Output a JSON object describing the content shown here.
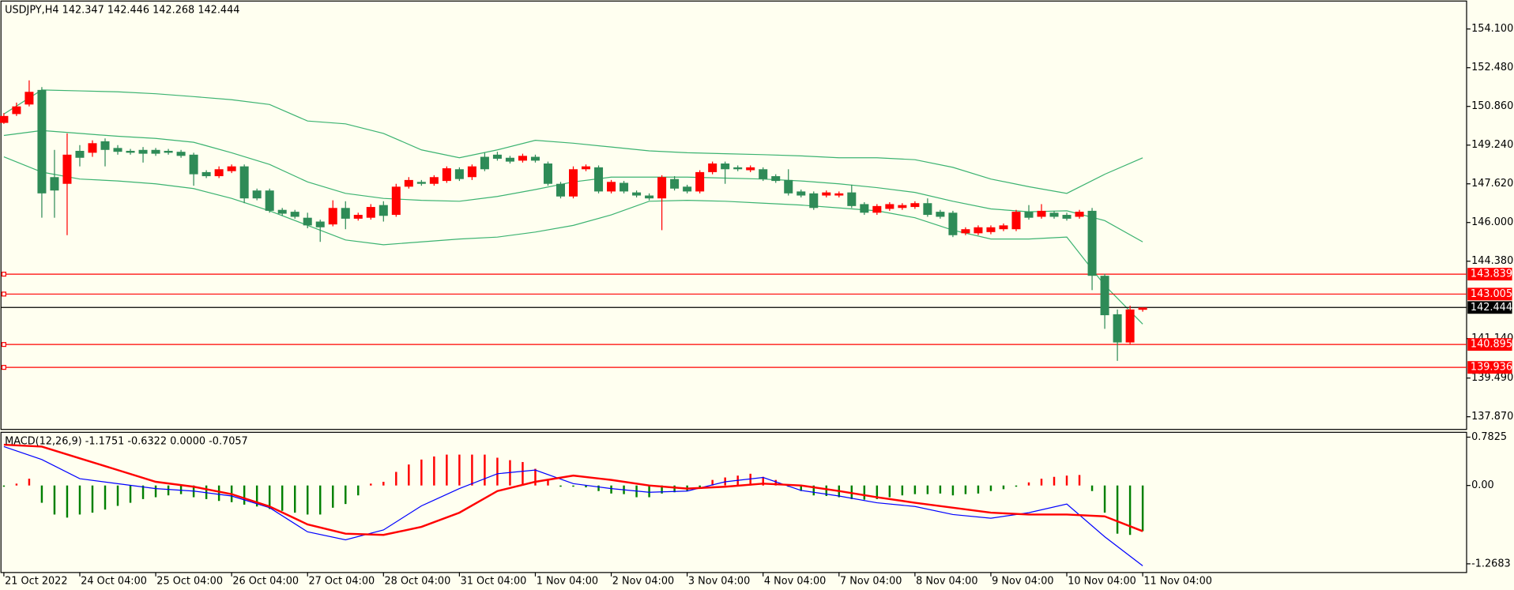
{
  "chart_data": {
    "type": "candlestick",
    "symbol": "USDJPY,H4",
    "categories": [
      "21 Oct 2022",
      null,
      null,
      null,
      null,
      null,
      "24 Oct 04:00",
      null,
      null,
      null,
      null,
      null,
      "25 Oct 04:00",
      null,
      null,
      null,
      null,
      null,
      "26 Oct 04:00",
      null,
      null,
      null,
      null,
      null,
      "27 Oct 04:00",
      null,
      null,
      null,
      null,
      null,
      "28 Oct 04:00",
      null,
      null,
      null,
      null,
      null,
      "31 Oct 04:00",
      null,
      null,
      null,
      null,
      null,
      "1 Nov 04:00",
      null,
      null,
      null,
      null,
      null,
      "2 Nov 04:00",
      null,
      null,
      null,
      null,
      null,
      "3 Nov 04:00",
      null,
      null,
      null,
      null,
      null,
      "4 Nov 04:00",
      null,
      null,
      null,
      null,
      null,
      "7 Nov 04:00",
      null,
      null,
      null,
      null,
      null,
      "8 Nov 04:00",
      null,
      null,
      null,
      null,
      null,
      "9 Nov 04:00",
      null,
      null,
      null,
      null,
      null,
      "10 Nov 04:00",
      null,
      null,
      null,
      null,
      null,
      "11 Nov 04:00"
    ],
    "open": [
      150.17,
      150.54,
      150.94,
      151.55,
      147.9,
      147.62,
      149.0,
      148.92,
      149.4,
      149.12,
      149.0,
      149.04,
      149.04,
      149.0,
      148.96,
      148.84,
      148.11,
      147.94,
      148.15,
      148.35,
      147.34,
      147.34,
      146.53,
      146.45,
      146.2,
      146.04,
      145.92,
      146.61,
      146.16,
      146.2,
      146.73,
      146.32,
      147.5,
      147.7,
      147.62,
      147.74,
      148.23,
      147.9,
      148.75,
      148.84,
      148.71,
      148.59,
      148.75,
      148.47,
      147.62,
      147.09,
      148.23,
      148.31,
      147.3,
      147.66,
      147.26,
      147.13,
      147.01,
      147.82,
      147.5,
      147.3,
      148.11,
      148.47,
      148.31,
      148.19,
      148.23,
      147.94,
      147.78,
      147.3,
      147.22,
      147.13,
      147.13,
      147.26,
      146.77,
      146.41,
      146.57,
      146.61,
      146.65,
      146.81,
      146.45,
      146.41,
      145.55,
      145.55,
      145.6,
      145.72,
      145.72,
      146.45,
      146.24,
      146.41,
      146.32,
      146.24,
      146.49,
      143.77,
      142.16,
      140.98,
      142.347
    ],
    "high": [
      150.58,
      151.02,
      151.95,
      151.67,
      149.04,
      149.73,
      149.24,
      149.44,
      149.52,
      149.24,
      149.08,
      149.16,
      149.12,
      149.08,
      149.04,
      148.92,
      148.19,
      148.35,
      148.43,
      148.43,
      147.42,
      147.42,
      146.61,
      146.53,
      146.41,
      146.12,
      146.93,
      146.89,
      146.41,
      146.77,
      146.89,
      147.62,
      147.9,
      147.78,
      147.98,
      148.35,
      148.31,
      148.43,
      148.92,
      148.96,
      148.79,
      148.88,
      148.84,
      148.55,
      147.7,
      148.35,
      148.43,
      148.39,
      147.78,
      147.74,
      147.34,
      147.22,
      147.98,
      147.94,
      147.58,
      148.19,
      148.55,
      148.55,
      148.39,
      148.39,
      148.31,
      148.02,
      148.23,
      147.38,
      147.3,
      147.34,
      147.3,
      147.58,
      146.85,
      146.77,
      146.85,
      146.81,
      146.89,
      147.01,
      146.53,
      146.49,
      145.8,
      145.88,
      145.88,
      145.96,
      146.53,
      146.73,
      146.77,
      146.49,
      146.41,
      146.53,
      146.61,
      143.85,
      142.36,
      142.52,
      142.446
    ],
    "low": [
      150.13,
      150.46,
      150.86,
      146.2,
      146.2,
      145.47,
      148.35,
      148.75,
      148.35,
      148.84,
      148.84,
      148.51,
      148.79,
      148.84,
      148.71,
      147.54,
      147.86,
      147.86,
      148.07,
      146.81,
      146.93,
      146.41,
      146.28,
      146.16,
      145.76,
      145.19,
      145.84,
      145.72,
      146.08,
      146.12,
      146.04,
      146.24,
      147.42,
      147.54,
      147.54,
      147.66,
      147.74,
      147.78,
      148.15,
      148.59,
      148.47,
      148.51,
      148.51,
      147.54,
      147.01,
      147.01,
      148.15,
      147.22,
      147.22,
      147.22,
      147.05,
      146.93,
      145.68,
      147.34,
      147.22,
      147.22,
      148.02,
      147.62,
      148.15,
      148.11,
      147.74,
      147.66,
      147.13,
      147.05,
      146.53,
      147.05,
      147.05,
      146.61,
      146.32,
      146.32,
      146.49,
      146.53,
      146.57,
      146.24,
      146.16,
      145.39,
      145.47,
      145.47,
      145.51,
      145.64,
      145.64,
      146.12,
      146.16,
      146.16,
      146.08,
      146.16,
      143.17,
      141.55,
      140.21,
      140.9,
      142.268
    ],
    "close": [
      150.46,
      150.86,
      151.47,
      147.22,
      147.34,
      148.84,
      148.71,
      149.32,
      149.04,
      148.96,
      148.92,
      148.88,
      148.88,
      148.92,
      148.79,
      148.02,
      147.94,
      148.23,
      148.35,
      147.01,
      147.01,
      146.49,
      146.37,
      146.24,
      145.88,
      145.8,
      146.61,
      146.16,
      146.32,
      146.65,
      146.28,
      147.5,
      147.78,
      147.62,
      147.9,
      148.27,
      147.82,
      148.35,
      148.23,
      148.67,
      148.55,
      148.79,
      148.59,
      147.62,
      147.09,
      148.23,
      148.35,
      147.3,
      147.7,
      147.3,
      147.13,
      147.01,
      147.9,
      147.42,
      147.3,
      148.11,
      148.47,
      148.23,
      148.23,
      148.31,
      147.82,
      147.74,
      147.22,
      147.13,
      146.61,
      147.26,
      147.22,
      146.69,
      146.41,
      146.69,
      146.77,
      146.73,
      146.81,
      146.32,
      146.24,
      145.47,
      145.72,
      145.8,
      145.8,
      145.88,
      146.45,
      146.2,
      146.49,
      146.24,
      146.16,
      146.45,
      143.77,
      142.12,
      140.98,
      142.36,
      142.444
    ],
    "up_color": "#ff0000",
    "down_color": "#2e8b57",
    "ylim": [
      137.34,
      155.23
    ],
    "yticks": [
      {
        "value": 154.1,
        "label": "154.100"
      },
      {
        "value": 152.48,
        "label": "152.480"
      },
      {
        "value": 150.86,
        "label": "150.860"
      },
      {
        "value": 149.24,
        "label": "149.240"
      },
      {
        "value": 147.62,
        "label": "147.620"
      },
      {
        "value": 146.0,
        "label": "146.000"
      },
      {
        "value": 144.38,
        "label": "144.380"
      },
      {
        "value": 141.14,
        "label": "141.140"
      },
      {
        "value": 139.49,
        "label": "139.490"
      },
      {
        "value": 137.87,
        "label": "137.870"
      }
    ],
    "bands": {
      "color": "#3cb371",
      "x": [
        0,
        3,
        6,
        9,
        12,
        15,
        18,
        21,
        24,
        27,
        30,
        33,
        36,
        39,
        42,
        45,
        48,
        51,
        54,
        57,
        60,
        63,
        66,
        69,
        72,
        75,
        78,
        81,
        84,
        87,
        90
      ],
      "upper": [
        150.54,
        151.55,
        151.51,
        151.47,
        151.39,
        151.27,
        151.14,
        150.94,
        150.25,
        150.13,
        149.73,
        149.04,
        148.71,
        149.04,
        149.44,
        149.32,
        149.16,
        149.0,
        148.92,
        148.88,
        148.84,
        148.79,
        148.71,
        148.71,
        148.63,
        148.31,
        147.82,
        147.5,
        147.22,
        148.02,
        148.71
      ],
      "middle": [
        149.645,
        149.85,
        149.73,
        149.61,
        149.52,
        149.36,
        148.92,
        148.43,
        147.7,
        147.22,
        147.01,
        146.93,
        146.89,
        147.09,
        147.38,
        147.7,
        147.9,
        147.9,
        147.9,
        147.86,
        147.82,
        147.74,
        147.62,
        147.46,
        147.26,
        146.89,
        146.57,
        146.45,
        146.49,
        146.08,
        145.19
      ],
      "lower": [
        148.75,
        148.11,
        147.82,
        147.74,
        147.62,
        147.42,
        147.01,
        146.49,
        145.88,
        145.27,
        145.07,
        145.19,
        145.31,
        145.39,
        145.6,
        145.88,
        146.32,
        146.89,
        146.93,
        146.89,
        146.81,
        146.73,
        146.61,
        146.49,
        146.2,
        145.68,
        145.31,
        145.31,
        145.39,
        143.37,
        141.75
      ]
    },
    "levels": [
      {
        "value": 143.839,
        "color": "#ff0000"
      },
      {
        "value": 143.005,
        "color": "#ff0000"
      },
      {
        "value": 142.444,
        "color": "#000000"
      },
      {
        "value": 140.895,
        "color": "#ff0000"
      },
      {
        "value": 139.936,
        "color": "#ff0000"
      }
    ],
    "indicator": {
      "title": "MACD(12,26,9)",
      "header_values": [
        -1.1751,
        -0.6322,
        {
          "value": 0,
          "label": "0.0000"
        },
        -0.7057
      ],
      "ylim": [
        -1.409,
        0.861
      ],
      "yticks": [
        0.7825,
        {
          "value": 0,
          "label": "0.00"
        },
        -1.2683
      ],
      "pos_color": "#ff0000",
      "neg_color": "#008000",
      "histogram": [
        -0.02,
        0.03,
        0.11,
        -0.28,
        -0.47,
        -0.52,
        -0.47,
        -0.44,
        -0.39,
        -0.33,
        -0.28,
        -0.22,
        -0.19,
        -0.16,
        -0.14,
        -0.19,
        -0.22,
        -0.25,
        -0.27,
        -0.31,
        -0.34,
        -0.38,
        -0.41,
        -0.44,
        -0.47,
        -0.47,
        -0.36,
        -0.3,
        -0.16,
        0.03,
        0.06,
        0.22,
        0.34,
        0.42,
        0.47,
        0.5,
        0.5,
        0.5,
        0.5,
        0.45,
        0.41,
        0.38,
        0.27,
        0.08,
        -0.02,
        -0.02,
        -0.03,
        -0.09,
        -0.13,
        -0.14,
        -0.19,
        -0.19,
        -0.13,
        -0.11,
        -0.09,
        -0.03,
        0.09,
        0.13,
        0.16,
        0.19,
        0.14,
        0.09,
        -0.02,
        -0.09,
        -0.16,
        -0.17,
        -0.19,
        -0.22,
        -0.23,
        -0.22,
        -0.19,
        -0.16,
        -0.14,
        -0.14,
        -0.13,
        -0.16,
        -0.14,
        -0.13,
        -0.09,
        -0.06,
        -0.02,
        0.05,
        0.11,
        0.14,
        0.16,
        0.17,
        -0.09,
        -0.44,
        -0.78,
        -0.8,
        -0.74
      ],
      "macd": {
        "color": "#0000ff",
        "x": [
          0,
          3,
          6,
          9,
          12,
          15,
          18,
          21,
          24,
          27,
          30,
          33,
          36,
          39,
          42,
          45,
          48,
          51,
          54,
          57,
          60,
          63,
          66,
          69,
          72,
          75,
          78,
          81,
          84,
          87,
          90
        ],
        "values": [
          0.63,
          0.42,
          0.11,
          0.03,
          -0.05,
          -0.09,
          -0.17,
          -0.36,
          -0.75,
          -0.88,
          -0.72,
          -0.33,
          -0.05,
          0.19,
          0.25,
          0.03,
          -0.05,
          -0.11,
          -0.09,
          0.06,
          0.13,
          -0.08,
          -0.17,
          -0.28,
          -0.34,
          -0.47,
          -0.53,
          -0.44,
          -0.3,
          -0.83,
          -1.3
        ]
      },
      "signal": {
        "color": "#ff0000",
        "x": [
          0,
          3,
          6,
          9,
          12,
          15,
          18,
          21,
          24,
          27,
          30,
          33,
          36,
          39,
          42,
          45,
          48,
          51,
          54,
          57,
          60,
          63,
          66,
          69,
          72,
          75,
          78,
          81,
          84,
          87,
          90
        ],
        "values": [
          0.66,
          0.63,
          0.44,
          0.25,
          0.06,
          -0.02,
          -0.14,
          -0.34,
          -0.63,
          -0.78,
          -0.8,
          -0.67,
          -0.44,
          -0.09,
          0.06,
          0.16,
          0.09,
          0.0,
          -0.05,
          -0.02,
          0.03,
          0.0,
          -0.09,
          -0.19,
          -0.28,
          -0.36,
          -0.44,
          -0.47,
          -0.47,
          -0.5,
          -0.74
        ]
      }
    }
  }
}
